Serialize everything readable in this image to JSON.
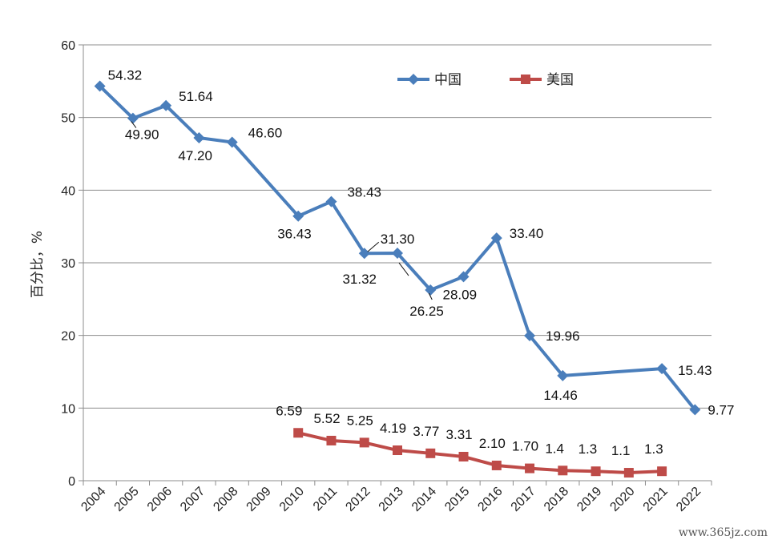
{
  "chart_data": {
    "type": "line",
    "categories": [
      "2004",
      "2005",
      "2006",
      "2007",
      "2008",
      "2009",
      "2010",
      "2011",
      "2012",
      "2013",
      "2014",
      "2015",
      "2016",
      "2017",
      "2018",
      "2019",
      "2020",
      "2021",
      "2022"
    ],
    "ylabel": "百分比，%",
    "ylim": [
      0,
      60
    ],
    "yticks": [
      0,
      10,
      20,
      30,
      40,
      50,
      60
    ],
    "grid": true,
    "legend_position": "top-right",
    "series": [
      {
        "name": "中国",
        "color": "#4a7ebb",
        "marker": "diamond",
        "points": [
          {
            "x": "2004",
            "y": 54.32,
            "label": "54.32"
          },
          {
            "x": "2005",
            "y": 49.9,
            "label": "49.90"
          },
          {
            "x": "2006",
            "y": 51.64,
            "label": "51.64"
          },
          {
            "x": "2007",
            "y": 47.2,
            "label": "47.20"
          },
          {
            "x": "2008",
            "y": 46.6,
            "label": "46.60"
          },
          {
            "x": "2010",
            "y": 36.43,
            "label": "36.43"
          },
          {
            "x": "2011",
            "y": 38.43,
            "label": "38.43"
          },
          {
            "x": "2012",
            "y": 31.3,
            "label": "31.30"
          },
          {
            "x": "2013",
            "y": 31.32,
            "label": "31.32"
          },
          {
            "x": "2014",
            "y": 26.25,
            "label": "26.25"
          },
          {
            "x": "2015",
            "y": 28.09,
            "label": "28.09"
          },
          {
            "x": "2016",
            "y": 33.4,
            "label": "33.40"
          },
          {
            "x": "2017",
            "y": 19.96,
            "label": "19.96"
          },
          {
            "x": "2018",
            "y": 14.46,
            "label": "14.46"
          },
          {
            "x": "2021",
            "y": 15.43,
            "label": "15.43"
          },
          {
            "x": "2022",
            "y": 9.77,
            "label": "9.77"
          }
        ]
      },
      {
        "name": "美国",
        "color": "#be4b48",
        "marker": "square",
        "points": [
          {
            "x": "2010",
            "y": 6.59,
            "label": "6.59"
          },
          {
            "x": "2011",
            "y": 5.52,
            "label": "5.52"
          },
          {
            "x": "2012",
            "y": 5.25,
            "label": "5.25"
          },
          {
            "x": "2013",
            "y": 4.19,
            "label": "4.19"
          },
          {
            "x": "2014",
            "y": 3.77,
            "label": "3.77"
          },
          {
            "x": "2015",
            "y": 3.31,
            "label": "3.31"
          },
          {
            "x": "2016",
            "y": 2.1,
            "label": "2.10"
          },
          {
            "x": "2017",
            "y": 1.7,
            "label": "1.70"
          },
          {
            "x": "2018",
            "y": 1.4,
            "label": "1.4"
          },
          {
            "x": "2019",
            "y": 1.3,
            "label": "1.3"
          },
          {
            "x": "2020",
            "y": 1.1,
            "label": "1.1"
          },
          {
            "x": "2021",
            "y": 1.3,
            "label": "1.3"
          }
        ]
      }
    ]
  },
  "watermark": "www.365jz.com"
}
